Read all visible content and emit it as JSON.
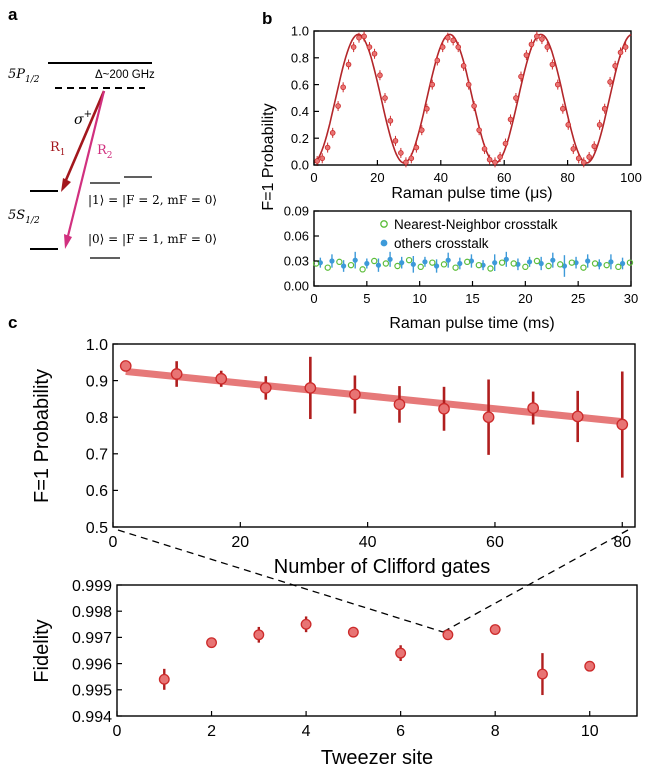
{
  "panel_labels": {
    "a": "a",
    "b": "b",
    "c": "c"
  },
  "colors": {
    "red": "#cc2a2a",
    "red_light": "#e87474",
    "green": "#8fd46b",
    "blue": "#3d9ad9",
    "magenta": "#d1307f",
    "dark_red": "#a3171d"
  },
  "energy_diagram": {
    "excited_state": "5P",
    "excited_sub": "1/2",
    "detuning": "Δ~200 GHz",
    "polarization": "σ",
    "polarization_sup": "+",
    "beam1": "R",
    "beam1_sub": "1",
    "beam2": "R",
    "beam2_sub": "2",
    "ground_state": "5S",
    "ground_sub": "1/2",
    "state1": "|1⟩ = |F = 2, mF = 0⟩",
    "state0": "|0⟩ = |F = 1, mF = 0⟩"
  },
  "chart_data": [
    {
      "type": "line",
      "ylabel": "F=1 Probability",
      "xlabel": "Raman pulse time (μs)",
      "xlim": [
        0,
        100
      ],
      "ylim": [
        0,
        1.0
      ],
      "xticks": [
        "0",
        "20",
        "40",
        "60",
        "80",
        "100"
      ],
      "yticks": [
        "0.0",
        "0.2",
        "0.4",
        "0.6",
        "0.8",
        "1.0"
      ],
      "fit": {
        "amplitude": 0.48,
        "offset": 0.495,
        "period_us": 28.8,
        "phase_us": -0.4
      },
      "points": {
        "x": [
          1,
          2.6,
          4.3,
          5.9,
          7.6,
          9.2,
          10.9,
          12.5,
          14.2,
          15.8,
          17.5,
          19.1,
          20.8,
          22.4,
          24.1,
          25.7,
          27.4,
          29,
          30.7,
          32.3,
          34,
          35.6,
          37.3,
          38.9,
          40.6,
          42.2,
          43.9,
          45.5,
          47.2,
          48.8,
          50.5,
          52.1,
          53.8,
          55.4,
          57.1,
          58.7,
          60.4,
          62,
          63.7,
          65.3,
          67,
          68.6,
          70.3,
          71.9,
          73.6,
          75.2,
          76.9,
          78.5,
          80.2,
          81.8,
          83.5,
          85.1,
          86.8,
          88.4,
          90.1,
          91.7,
          93.4,
          95,
          96.7,
          98.3
        ],
        "y": [
          0.03,
          0.05,
          0.13,
          0.24,
          0.44,
          0.58,
          0.75,
          0.88,
          0.95,
          0.96,
          0.88,
          0.83,
          0.67,
          0.5,
          0.33,
          0.18,
          0.09,
          0.02,
          0.05,
          0.13,
          0.26,
          0.42,
          0.6,
          0.78,
          0.88,
          0.95,
          0.93,
          0.88,
          0.74,
          0.6,
          0.44,
          0.26,
          0.12,
          0.04,
          0.02,
          0.06,
          0.16,
          0.34,
          0.5,
          0.66,
          0.82,
          0.9,
          0.96,
          0.94,
          0.88,
          0.75,
          0.6,
          0.42,
          0.3,
          0.12,
          0.05,
          0.02,
          0.06,
          0.14,
          0.3,
          0.42,
          0.62,
          0.74,
          0.84,
          0.88
        ]
      }
    },
    {
      "type": "scatter",
      "xlabel": "Raman pulse time (ms)",
      "xlim": [
        0,
        30
      ],
      "ylim": [
        0,
        0.09
      ],
      "xticks": [
        "0",
        "5",
        "10",
        "15",
        "20",
        "25",
        "30"
      ],
      "yticks": [
        "0.00",
        "0.03",
        "0.06",
        "0.09"
      ],
      "legend_position": "top-right",
      "series": [
        {
          "name": "Nearest-Neighbor crosstalk",
          "style": "open-green",
          "x": [
            0.2,
            1.3,
            2.4,
            3.5,
            4.6,
            5.7,
            6.8,
            7.9,
            9,
            10.1,
            11.2,
            12.3,
            13.4,
            14.5,
            15.6,
            16.7,
            17.8,
            18.9,
            20,
            21.1,
            22.2,
            23.3,
            24.4,
            25.5,
            26.6,
            27.7,
            28.8,
            29.9
          ],
          "y": [
            0.027,
            0.022,
            0.029,
            0.025,
            0.02,
            0.03,
            0.027,
            0.024,
            0.031,
            0.023,
            0.028,
            0.026,
            0.022,
            0.029,
            0.025,
            0.021,
            0.028,
            0.027,
            0.023,
            0.03,
            0.024,
            0.026,
            0.028,
            0.022,
            0.027,
            0.025,
            0.023,
            0.028
          ]
        },
        {
          "name": "others crosstalk",
          "style": "filled-blue",
          "x": [
            0.6,
            1.7,
            2.8,
            3.9,
            5,
            6.1,
            7.2,
            8.3,
            9.4,
            10.5,
            11.6,
            12.7,
            13.8,
            14.9,
            16,
            17.1,
            18.2,
            19.3,
            20.4,
            21.5,
            22.6,
            23.7,
            24.8,
            25.9,
            27,
            28.1,
            29.2
          ],
          "y": [
            0.028,
            0.03,
            0.024,
            0.031,
            0.027,
            0.025,
            0.032,
            0.028,
            0.026,
            0.029,
            0.024,
            0.031,
            0.027,
            0.03,
            0.025,
            0.028,
            0.032,
            0.026,
            0.029,
            0.027,
            0.031,
            0.024,
            0.028,
            0.03,
            0.026,
            0.029,
            0.027
          ],
          "err": [
            0.006,
            0.008,
            0.007,
            0.01,
            0.006,
            0.008,
            0.009,
            0.007,
            0.01,
            0.006,
            0.008,
            0.009,
            0.007,
            0.008,
            0.006,
            0.01,
            0.009,
            0.007,
            0.006,
            0.008,
            0.009,
            0.013,
            0.007,
            0.008,
            0.006,
            0.009,
            0.007
          ]
        }
      ]
    },
    {
      "type": "scatter",
      "ylabel": "F=1 Probability",
      "xlabel": "Number of Clifford gates",
      "xlim": [
        0,
        82
      ],
      "ylim": [
        0.5,
        1.0
      ],
      "xticks": [
        "0",
        "20",
        "40",
        "60",
        "80"
      ],
      "yticks": [
        "0.5",
        "0.6",
        "0.7",
        "0.8",
        "0.9",
        "1.0"
      ],
      "fit": {
        "x0": 2,
        "y0": 0.925,
        "x1": 80,
        "y1": 0.788
      },
      "series": [
        {
          "name": "",
          "x": [
            2,
            10,
            17,
            24,
            31,
            38,
            45,
            52,
            59,
            66,
            73,
            80
          ],
          "y": [
            0.94,
            0.918,
            0.905,
            0.88,
            0.88,
            0.862,
            0.835,
            0.823,
            0.8,
            0.825,
            0.802,
            0.78
          ],
          "err": [
            0.012,
            0.035,
            0.022,
            0.032,
            0.085,
            0.052,
            0.05,
            0.06,
            0.103,
            0.045,
            0.07,
            0.145
          ]
        }
      ]
    },
    {
      "type": "scatter",
      "ylabel": "Fidelity",
      "xlabel": "Tweezer site",
      "xlim": [
        0,
        11
      ],
      "ylim": [
        0.994,
        0.999
      ],
      "xticks": [
        "0",
        "2",
        "4",
        "6",
        "8",
        "10"
      ],
      "yticks": [
        "0.994",
        "0.995",
        "0.996",
        "0.997",
        "0.998",
        "0.999"
      ],
      "series": [
        {
          "name": "",
          "x": [
            1,
            2,
            3,
            4,
            5,
            6,
            7,
            8,
            9,
            10
          ],
          "y": [
            0.9954,
            0.9968,
            0.9971,
            0.9975,
            0.9972,
            0.9964,
            0.9971,
            0.9973,
            0.9956,
            0.9959
          ],
          "err": [
            0.0004,
            0.0001,
            0.0003,
            0.0003,
            0.0002,
            0.0003,
            0.0001,
            0.0001,
            0.0008,
            0.0001
          ]
        }
      ]
    }
  ]
}
